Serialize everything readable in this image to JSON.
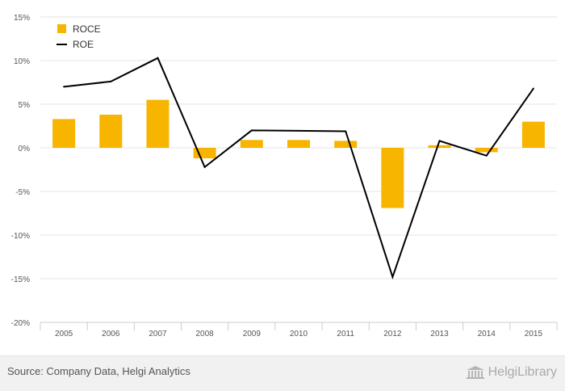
{
  "chart_data": {
    "type": "bar",
    "categories": [
      "2005",
      "2006",
      "2007",
      "2008",
      "2009",
      "2010",
      "2011",
      "2012",
      "2013",
      "2014",
      "2015"
    ],
    "series": [
      {
        "name": "ROCE",
        "type": "bar",
        "color": "#f7b500",
        "values": [
          3.3,
          3.8,
          5.5,
          -1.2,
          0.9,
          0.9,
          0.8,
          -6.9,
          0.3,
          -0.5,
          3.0
        ]
      },
      {
        "name": "ROE",
        "type": "line",
        "color": "#000000",
        "values": [
          7.0,
          7.6,
          10.3,
          -2.2,
          2.0,
          1.95,
          1.9,
          -14.8,
          0.8,
          -0.9,
          6.8
        ]
      }
    ],
    "y_ticks": [
      "15%",
      "10%",
      "5%",
      "0%",
      "-5%",
      "-10%",
      "-15%",
      "-20%"
    ],
    "ylim": [
      -20,
      15
    ],
    "title": "",
    "xlabel": "",
    "ylabel": "",
    "grid": true,
    "legend_position": "top-left"
  },
  "footer": {
    "source": "Source: Company Data, Helgi Analytics",
    "brand": "HelgiLibrary",
    "brand_icon": "library-building-icon"
  }
}
